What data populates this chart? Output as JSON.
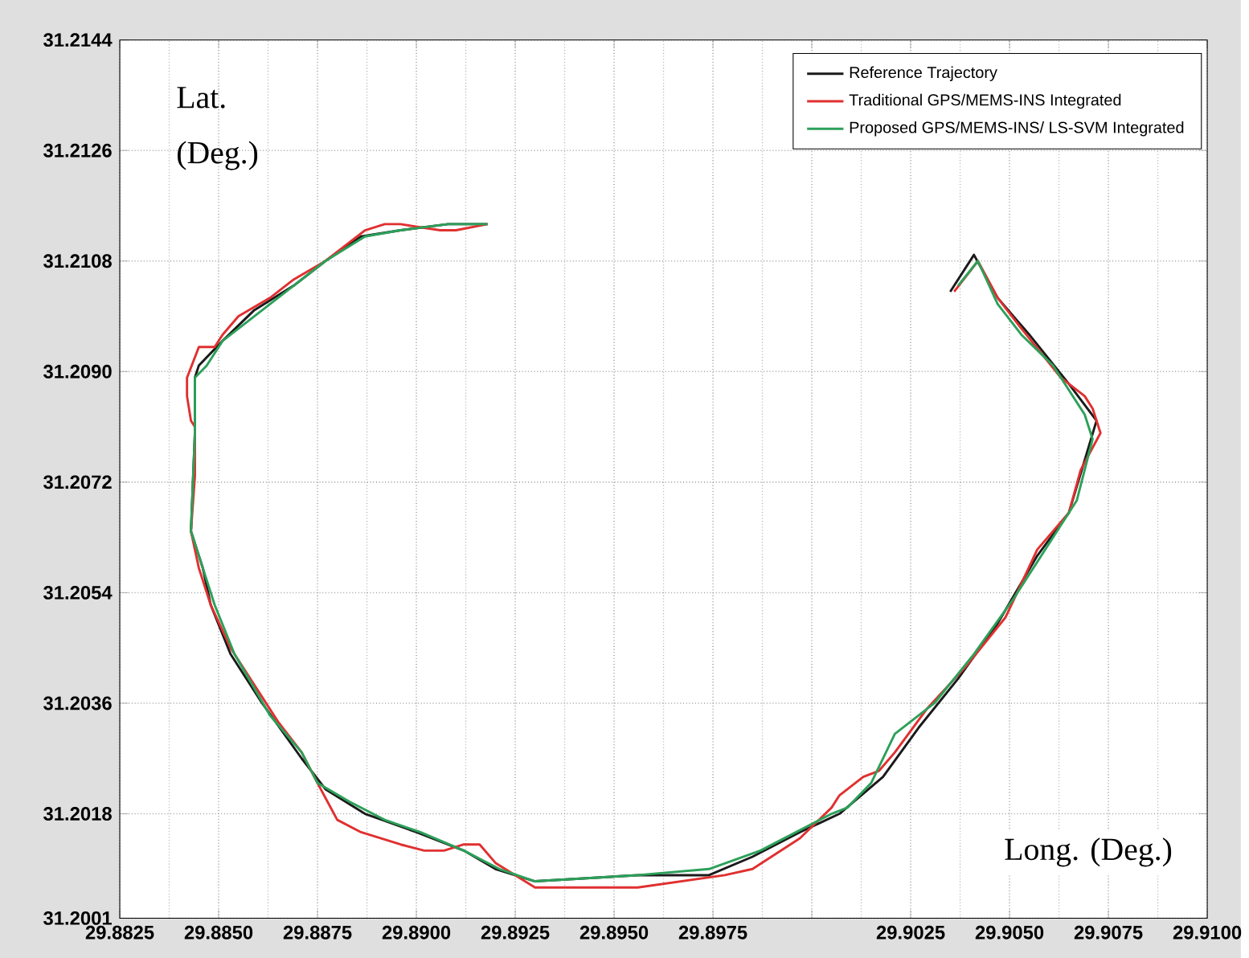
{
  "chart_data": {
    "type": "line",
    "xlabel": "Long. (Deg.)",
    "ylabel": "Lat. (Deg.)",
    "xlim": [
      29.8825,
      29.91
    ],
    "ylim": [
      31.2001,
      31.2144
    ],
    "xticks": [
      29.8825,
      {
        "value": 29.885,
        "label": "29.8850"
      },
      29.8875,
      {
        "value": 29.89,
        "label": "29.8900"
      },
      29.8925,
      {
        "value": 29.895,
        "label": "29.8950"
      },
      29.8975,
      {
        "value": 29.9,
        "label": null
      },
      29.9025,
      {
        "value": 29.905,
        "label": "29.9050"
      },
      29.9075,
      {
        "value": 29.91,
        "label": "29.9100"
      }
    ],
    "yticks": [
      31.2001,
      31.2018,
      31.2036,
      31.2054,
      31.2072,
      {
        "value": 31.209,
        "label": "31.2090"
      },
      31.2108,
      31.2126,
      31.2144
    ],
    "grid": true,
    "legend": "top right",
    "line_style": "solid",
    "series": [
      {
        "name": "Reference Trajectory",
        "color": "#1a1a1a",
        "x": [
          29.8918,
          29.8908,
          29.8896,
          29.8886,
          29.8877,
          29.8869,
          29.8859,
          29.8851,
          29.8845,
          29.8844,
          29.8844,
          29.8843,
          29.8846,
          29.8848,
          29.8853,
          29.8861,
          29.8871,
          29.8877,
          29.8887,
          29.89,
          29.8912,
          29.892,
          29.893,
          29.8956,
          29.8974,
          29.8985,
          29.8997,
          29.9007,
          29.9018,
          29.9027,
          29.9037,
          29.9047,
          29.9057,
          29.9065,
          29.9072,
          29.9065,
          29.9055,
          29.9047,
          29.9041,
          29.9035
        ],
        "values": [
          31.2114,
          31.2114,
          31.2113,
          31.2112,
          31.2108,
          31.2104,
          31.21,
          31.2095,
          31.2091,
          31.2089,
          31.208,
          31.2064,
          31.2058,
          31.2052,
          31.2044,
          31.2036,
          31.2027,
          31.2022,
          31.2018,
          31.2015,
          31.2012,
          31.2009,
          31.2007,
          31.2008,
          31.2008,
          31.2011,
          31.2015,
          31.2018,
          31.2024,
          31.2032,
          31.204,
          31.2049,
          31.206,
          31.2067,
          31.2082,
          31.2088,
          31.2096,
          31.2102,
          31.2109,
          31.2103
        ]
      },
      {
        "name": "Traditional GPS/MEMS-INS Integrated",
        "color": "#e03030",
        "x": [
          29.8918,
          29.891,
          29.8906,
          29.8896,
          29.8892,
          29.8887,
          29.8877,
          29.8869,
          29.8863,
          29.8855,
          29.8851,
          29.8849,
          29.8845,
          29.8842,
          29.8842,
          29.8843,
          29.8844,
          29.8844,
          29.8843,
          29.8845,
          29.8848,
          29.8853,
          29.8859,
          29.8865,
          29.8871,
          29.8875,
          29.888,
          29.8886,
          29.8896,
          29.8902,
          29.8907,
          29.8912,
          29.8916,
          29.892,
          29.893,
          29.8956,
          29.8978,
          29.8985,
          29.8997,
          29.9005,
          29.9007,
          29.9013,
          29.9017,
          29.9021,
          29.9029,
          29.9039,
          29.9049,
          29.9057,
          29.9065,
          29.9068,
          29.9073,
          29.9071,
          29.9069,
          29.9063,
          29.9053,
          29.9047,
          29.9042,
          29.9036
        ],
        "values": [
          31.2114,
          31.2113,
          31.2113,
          31.2114,
          31.2114,
          31.2113,
          31.2108,
          31.2105,
          31.2102,
          31.2099,
          31.2096,
          31.2094,
          31.2094,
          31.2089,
          31.2086,
          31.2082,
          31.2081,
          31.2073,
          31.2064,
          31.2058,
          31.2052,
          31.2045,
          31.2039,
          31.2033,
          31.2028,
          31.2023,
          31.2017,
          31.2015,
          31.2013,
          31.2012,
          31.2012,
          31.2013,
          31.2013,
          31.201,
          31.2006,
          31.2006,
          31.2008,
          31.2009,
          31.2014,
          31.2019,
          31.2021,
          31.2024,
          31.2025,
          31.2028,
          31.2035,
          31.2042,
          31.205,
          31.2061,
          31.2067,
          31.2074,
          31.208,
          31.2084,
          31.2086,
          31.2089,
          31.2097,
          31.2102,
          31.2108,
          31.2103
        ]
      },
      {
        "name": "Proposed GPS/MEMS-INS/ LS-SVM Integrated",
        "color": "#2ca05a",
        "x": [
          29.8918,
          29.8908,
          29.8896,
          29.8887,
          29.8877,
          29.8869,
          29.8859,
          29.8851,
          29.8847,
          29.8844,
          29.8844,
          29.8843,
          29.8846,
          29.8849,
          29.8854,
          29.8863,
          29.8871,
          29.8875,
          29.8883,
          29.8892,
          29.8901,
          29.8912,
          29.8921,
          29.893,
          29.8956,
          29.8974,
          29.8987,
          29.9005,
          29.9009,
          29.9015,
          29.9021,
          29.9031,
          29.9041,
          29.9051,
          29.9059,
          29.9067,
          29.9071,
          29.9069,
          29.9061,
          29.9053,
          29.9047,
          29.9042,
          29.9037
        ],
        "values": [
          31.2114,
          31.2114,
          31.2113,
          31.2112,
          31.2108,
          31.2104,
          31.2099,
          31.2095,
          31.2091,
          31.2089,
          31.208,
          31.2064,
          31.2058,
          31.2052,
          31.2044,
          31.2034,
          31.2028,
          31.2023,
          31.202,
          31.2017,
          31.2015,
          31.2012,
          31.2009,
          31.2007,
          31.2008,
          31.2009,
          31.2012,
          31.2018,
          31.2019,
          31.2023,
          31.2031,
          31.2036,
          31.2044,
          31.2053,
          31.2061,
          31.2069,
          31.2079,
          31.2083,
          31.2091,
          31.2096,
          31.2101,
          31.2108,
          31.2104
        ]
      }
    ]
  }
}
